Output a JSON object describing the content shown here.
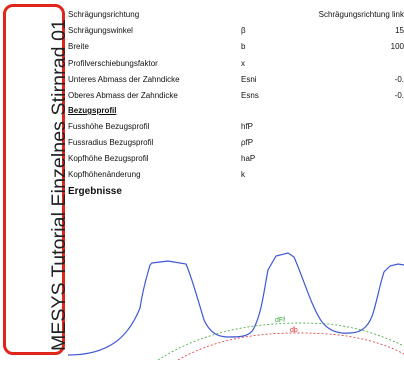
{
  "sidebar": {
    "title": "MESYS Tutorial Einzelnes Stirnrad 01"
  },
  "params": {
    "rows": [
      {
        "label": "Schrägungsrichtung",
        "symbol": "",
        "value": "Schrägungsrichtung link"
      },
      {
        "label": "Schrägungswinkel",
        "symbol": "β",
        "value": "15"
      },
      {
        "label": "Breite",
        "symbol": "b",
        "value": "100"
      },
      {
        "label": "Profilverschiebungsfaktor",
        "symbol": "x",
        "value": ""
      },
      {
        "label": "Unteres Abmass der Zahndicke",
        "symbol": "Esni",
        "value": "-0."
      },
      {
        "label": "Oberes Abmass der Zahndicke",
        "symbol": "Esns",
        "value": "-0."
      }
    ],
    "section_heading": "Bezugsprofil",
    "profile_rows": [
      {
        "label": "Fusshöhe Bezugsprofil",
        "symbol": "hfP",
        "value": ""
      },
      {
        "label": "Fussradius Bezugsprofil",
        "symbol": "ρfP",
        "value": ""
      },
      {
        "label": "Kopfhöhe Bezugsprofil",
        "symbol": "haP",
        "value": ""
      },
      {
        "label": "Kopfhöhenänderung",
        "symbol": "k",
        "value": ""
      }
    ],
    "results_heading": "Ergebnisse"
  },
  "chart": {
    "labels": {
      "df": "dFf",
      "db": "db"
    },
    "colors": {
      "tooth": "#3f58d6",
      "df": "#3aa83a",
      "db": "#e03030"
    }
  }
}
